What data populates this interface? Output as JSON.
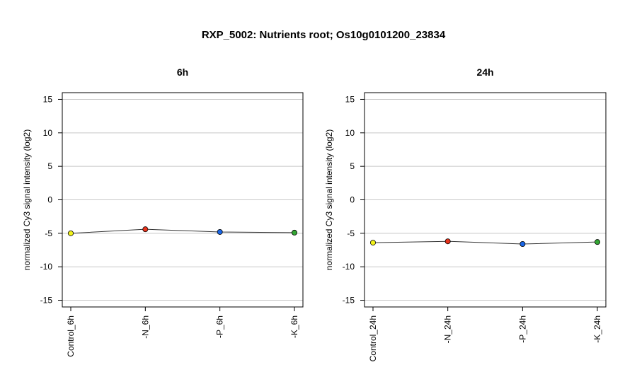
{
  "figure": {
    "title": "RXP_5002: Nutrients root; Os10g0101200_23834"
  },
  "chart_data": [
    {
      "type": "line",
      "title": "6h",
      "xlabel": "",
      "ylabel": "normalized Cy3 signal intensity (log2)",
      "ylim": [
        -16,
        16
      ],
      "yticks": [
        -15,
        -10,
        -5,
        0,
        5,
        10,
        15
      ],
      "grid": "horizontal",
      "categories": [
        "Control_6h",
        "-N_6h",
        "-P_6h",
        "-K_6h"
      ],
      "values": [
        -5.0,
        -4.4,
        -4.8,
        -4.9
      ],
      "point_colors": [
        "#f2f21a",
        "#e8331c",
        "#1a66e6",
        "#33a633"
      ]
    },
    {
      "type": "line",
      "title": "24h",
      "xlabel": "",
      "ylabel": "normalized Cy3 signal intensity (log2)",
      "ylim": [
        -16,
        16
      ],
      "yticks": [
        -15,
        -10,
        -5,
        0,
        5,
        10,
        15
      ],
      "grid": "horizontal",
      "categories": [
        "Control_24h",
        "-N_24h",
        "-P_24h",
        "-K_24h"
      ],
      "values": [
        -6.4,
        -6.2,
        -6.6,
        -6.3
      ],
      "point_colors": [
        "#f2f21a",
        "#e8331c",
        "#1a66e6",
        "#33a633"
      ]
    }
  ]
}
